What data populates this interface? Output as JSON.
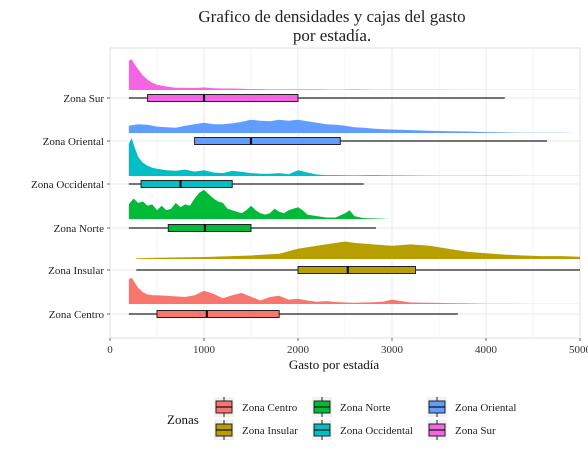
{
  "chart_data": {
    "type": "ridgeline_boxplot",
    "title": [
      "Grafico de densidades y cajas del gasto",
      "por estadía."
    ],
    "xlabel": "Gasto por estadía",
    "ylabel": "",
    "xlim": [
      0,
      5000
    ],
    "x_ticks": [
      0,
      1000,
      2000,
      3000,
      4000,
      5000
    ],
    "x_tick_labels": [
      "0",
      "1000",
      "2000",
      "3000",
      "4000",
      "5000"
    ],
    "grid": true,
    "legend": {
      "title": "Zonas",
      "position": "bottom",
      "entries": [
        "Zona Centro",
        "Zona Insular",
        "Zona Norte",
        "Zona Occidental",
        "Zona Oriental",
        "Zona Sur"
      ]
    },
    "categories": [
      "Zona Centro",
      "Zona Insular",
      "Zona Norte",
      "Zona Occidental",
      "Zona Oriental",
      "Zona Sur"
    ],
    "series": [
      {
        "name": "Zona Centro",
        "color": "#F8766D",
        "box": {
          "whisker_low": 200,
          "q1": 500,
          "median": 1030,
          "q3": 1800,
          "whisker_high": 3700
        },
        "density": {
          "x": [
            200,
            230,
            260,
            300,
            350,
            400,
            450,
            500,
            600,
            700,
            800,
            900,
            1000,
            1100,
            1200,
            1300,
            1400,
            1500,
            1600,
            1700,
            1800,
            1900,
            2000,
            2100,
            2200,
            2300,
            2400,
            2500,
            2600,
            2700,
            2800,
            2900,
            3000,
            3100,
            3200,
            3400,
            3600,
            3800,
            4000,
            4500,
            5000
          ],
          "y": [
            0.85,
            0.9,
            0.75,
            0.55,
            0.4,
            0.33,
            0.3,
            0.3,
            0.28,
            0.26,
            0.24,
            0.3,
            0.45,
            0.35,
            0.2,
            0.3,
            0.38,
            0.25,
            0.12,
            0.24,
            0.28,
            0.15,
            0.18,
            0.12,
            0.08,
            0.1,
            0.07,
            0.05,
            0.04,
            0.05,
            0.06,
            0.08,
            0.15,
            0.1,
            0.05,
            0.04,
            0.03,
            0.02,
            0.01,
            0.005,
            0.002
          ]
        }
      },
      {
        "name": "Zona Insular",
        "color": "#B79F00",
        "box": {
          "whisker_low": 280,
          "q1": 2000,
          "median": 2530,
          "q3": 3250,
          "whisker_high": 5000
        },
        "density": {
          "x": [
            280,
            500,
            1000,
            1500,
            1800,
            2000,
            2200,
            2400,
            2500,
            2600,
            2800,
            3000,
            3200,
            3400,
            3600,
            3800,
            4000,
            4200,
            4400,
            4600,
            4800,
            5000
          ],
          "y": [
            0.02,
            0.04,
            0.07,
            0.12,
            0.18,
            0.35,
            0.45,
            0.55,
            0.6,
            0.55,
            0.5,
            0.45,
            0.5,
            0.45,
            0.35,
            0.25,
            0.2,
            0.15,
            0.12,
            0.1,
            0.1,
            0.08
          ]
        }
      },
      {
        "name": "Zona Norte",
        "color": "#00BA38",
        "box": {
          "whisker_low": 200,
          "q1": 620,
          "median": 1010,
          "q3": 1500,
          "whisker_high": 2830
        },
        "density": {
          "x": [
            200,
            250,
            300,
            350,
            400,
            450,
            500,
            550,
            600,
            650,
            700,
            750,
            800,
            850,
            900,
            950,
            1000,
            1050,
            1100,
            1150,
            1200,
            1250,
            1300,
            1350,
            1400,
            1450,
            1500,
            1550,
            1600,
            1650,
            1700,
            1750,
            1800,
            1850,
            1900,
            1950,
            2000,
            2050,
            2100,
            2200,
            2300,
            2400,
            2500,
            2550,
            2600,
            2700,
            2800,
            2900,
            3000
          ],
          "y": [
            0.5,
            0.7,
            0.55,
            0.6,
            0.45,
            0.5,
            0.3,
            0.45,
            0.3,
            0.35,
            0.55,
            0.4,
            0.5,
            0.45,
            0.7,
            0.9,
            1.0,
            0.85,
            0.7,
            0.6,
            0.55,
            0.35,
            0.3,
            0.25,
            0.2,
            0.3,
            0.45,
            0.3,
            0.2,
            0.15,
            0.2,
            0.35,
            0.25,
            0.2,
            0.3,
            0.35,
            0.4,
            0.3,
            0.15,
            0.1,
            0.05,
            0.05,
            0.2,
            0.3,
            0.1,
            0.03,
            0.02,
            0.01,
            0.0
          ]
        }
      },
      {
        "name": "Zona Occidental",
        "color": "#00BFC4",
        "box": {
          "whisker_low": 200,
          "q1": 330,
          "median": 750,
          "q3": 1300,
          "whisker_high": 2700
        },
        "density": {
          "x": [
            200,
            230,
            260,
            300,
            350,
            400,
            450,
            500,
            600,
            700,
            800,
            900,
            1000,
            1100,
            1200,
            1300,
            1400,
            1500,
            1600,
            1700,
            1800,
            1900,
            2000,
            2100,
            2200,
            2300,
            2400,
            2600,
            2800,
            3000,
            3500,
            4000,
            4500,
            5000
          ],
          "y": [
            1.1,
            1.3,
            1.0,
            0.65,
            0.45,
            0.35,
            0.28,
            0.25,
            0.2,
            0.18,
            0.22,
            0.15,
            0.2,
            0.12,
            0.1,
            0.18,
            0.14,
            0.1,
            0.08,
            0.08,
            0.1,
            0.06,
            0.2,
            0.12,
            0.05,
            0.03,
            0.03,
            0.02,
            0.03,
            0.02,
            0.01,
            0.01,
            0.005,
            0.005
          ]
        }
      },
      {
        "name": "Zona Oriental",
        "color": "#619CFF",
        "box": {
          "whisker_low": 900,
          "q1": 900,
          "median": 1500,
          "q3": 2450,
          "whisker_high": 4650
        },
        "density": {
          "x": [
            200,
            300,
            400,
            500,
            600,
            700,
            800,
            900,
            1000,
            1100,
            1200,
            1300,
            1400,
            1500,
            1600,
            1700,
            1800,
            1900,
            2000,
            2100,
            2200,
            2300,
            2400,
            2500,
            2600,
            2700,
            2800,
            2900,
            3000,
            3200,
            3400,
            3600,
            3800,
            4000,
            4200,
            4400,
            4600,
            4800,
            5000
          ],
          "y": [
            0.25,
            0.3,
            0.28,
            0.22,
            0.2,
            0.18,
            0.25,
            0.3,
            0.35,
            0.3,
            0.3,
            0.33,
            0.38,
            0.45,
            0.42,
            0.4,
            0.45,
            0.42,
            0.45,
            0.4,
            0.35,
            0.3,
            0.28,
            0.25,
            0.2,
            0.18,
            0.15,
            0.13,
            0.12,
            0.1,
            0.08,
            0.06,
            0.05,
            0.03,
            0.02,
            0.01,
            0.01,
            0.01,
            0.0
          ]
        }
      },
      {
        "name": "Zona Sur",
        "color": "#F564E3",
        "box": {
          "whisker_low": 200,
          "q1": 400,
          "median": 1000,
          "q3": 2000,
          "whisker_high": 4200
        },
        "density": {
          "x": [
            200,
            230,
            260,
            300,
            350,
            400,
            450,
            500,
            600,
            700,
            800,
            900,
            1000,
            1100,
            1200,
            1300,
            1400,
            1500,
            1600,
            1700,
            1800,
            1900,
            2000,
            2200,
            2400,
            2600,
            2800,
            3000,
            3200,
            3500,
            4000,
            4500,
            5000
          ],
          "y": [
            1.0,
            1.05,
            0.9,
            0.7,
            0.5,
            0.35,
            0.25,
            0.18,
            0.12,
            0.08,
            0.08,
            0.07,
            0.09,
            0.06,
            0.05,
            0.05,
            0.04,
            0.03,
            0.03,
            0.02,
            0.02,
            0.02,
            0.02,
            0.02,
            0.01,
            0.02,
            0.01,
            0.01,
            0.01,
            0.01,
            0.005,
            0.005,
            0.003
          ]
        }
      }
    ]
  }
}
